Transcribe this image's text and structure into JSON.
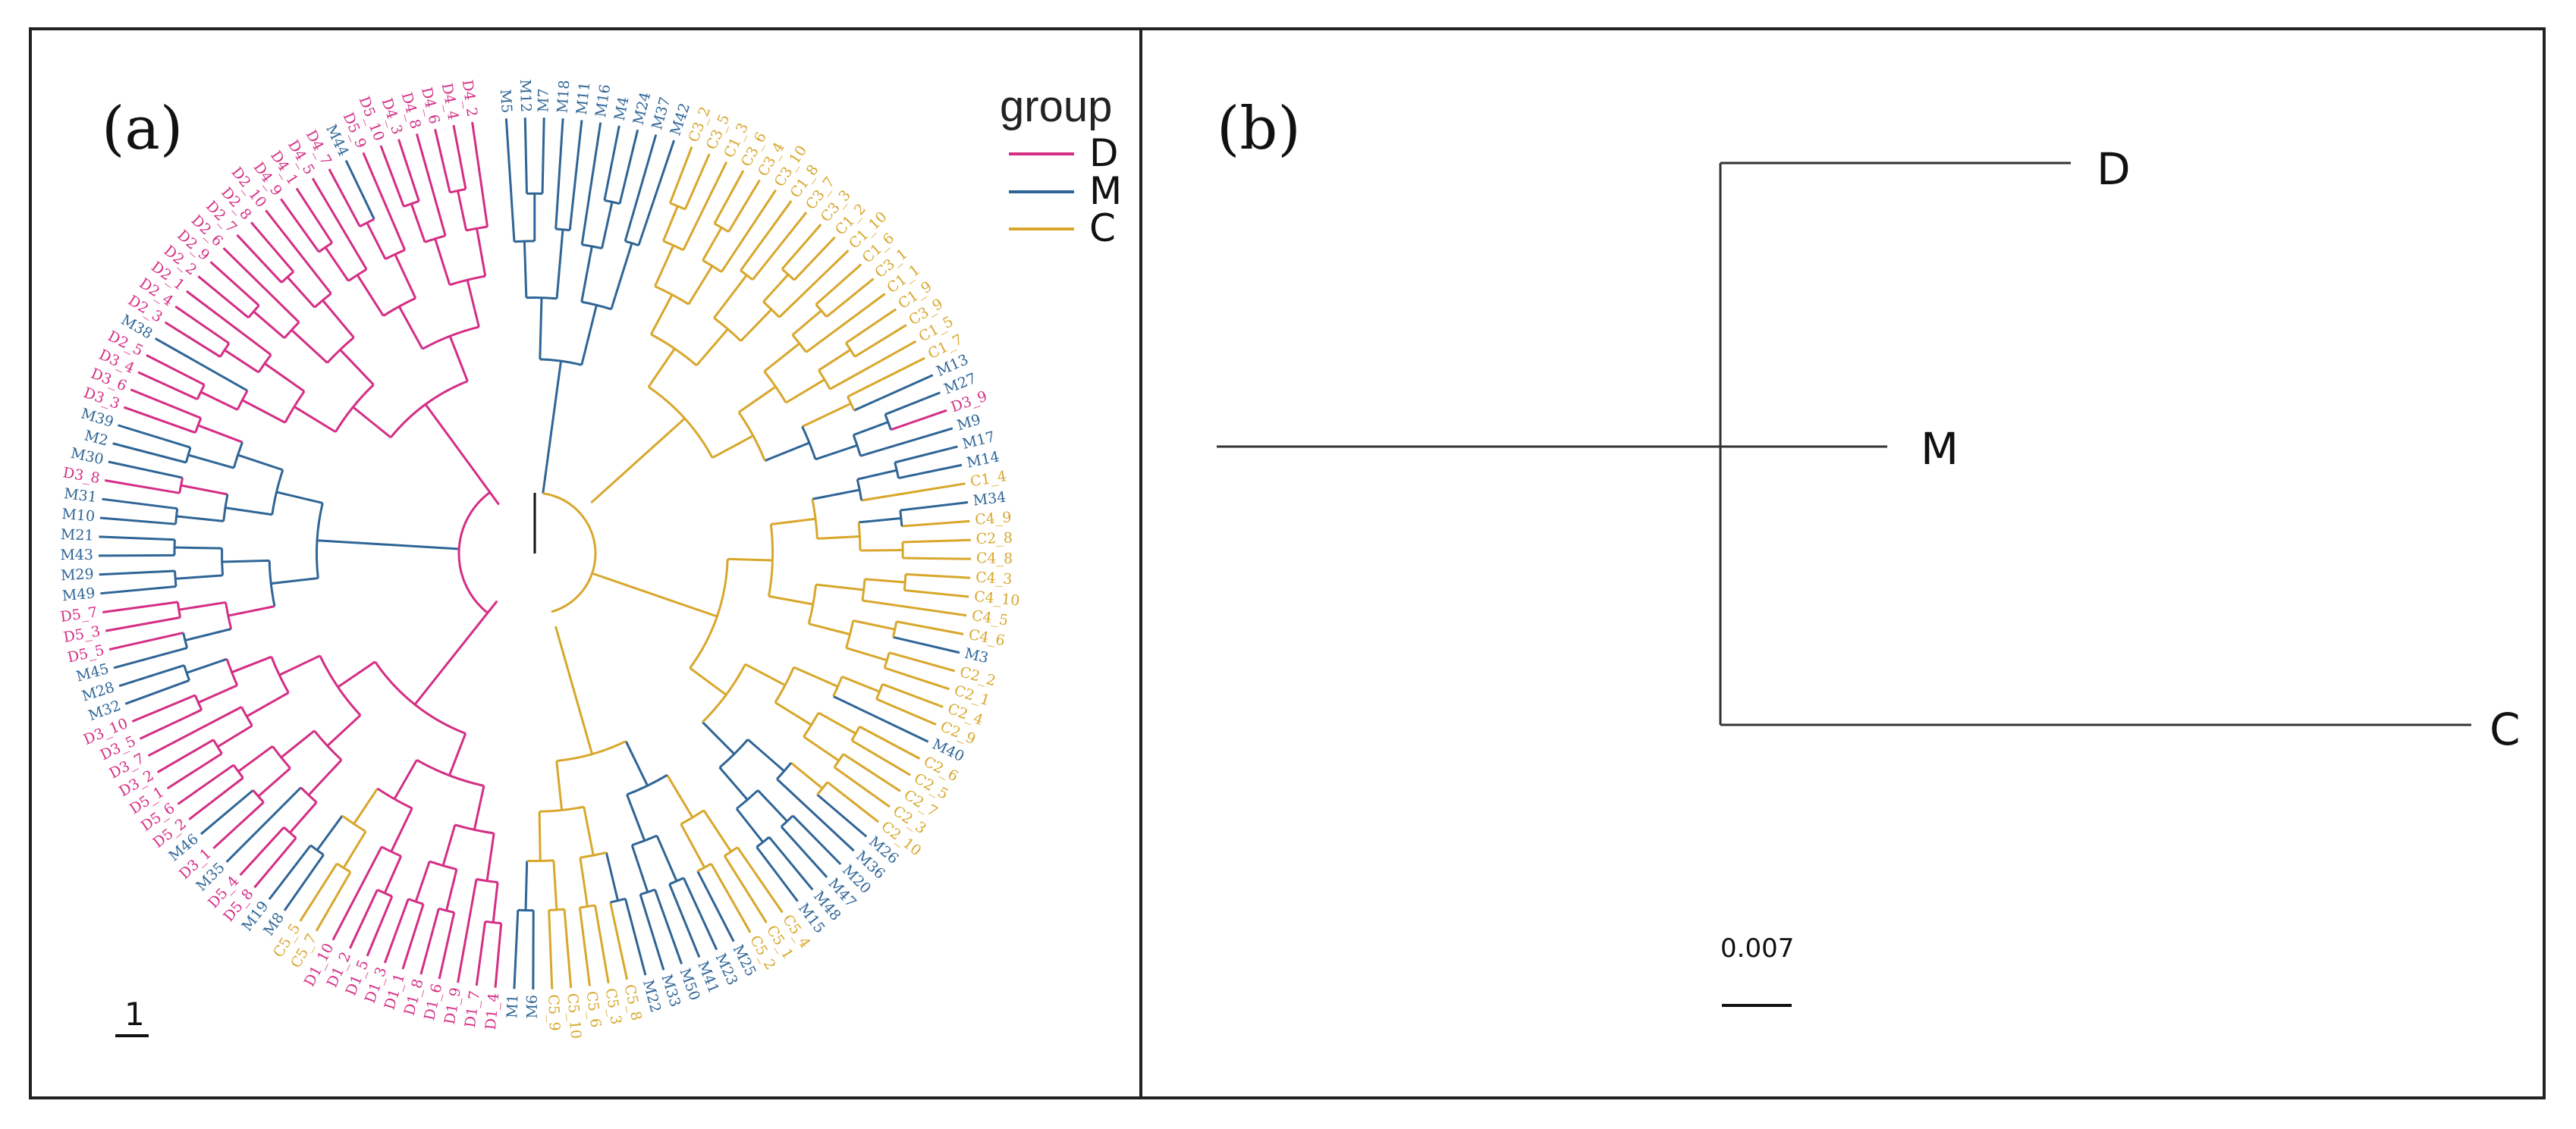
{
  "panel_a": {
    "label": "(a)",
    "legend": {
      "title": "group",
      "entries": [
        {
          "name": "D",
          "color": "#d42e85"
        },
        {
          "name": "M",
          "color": "#2f6596"
        },
        {
          "name": "C",
          "color": "#d8a72c"
        }
      ]
    },
    "scale_label": "1",
    "leaves": [
      {
        "label": "M5",
        "group": "M"
      },
      {
        "label": "M12",
        "group": "M"
      },
      {
        "label": "M7",
        "group": "M"
      },
      {
        "label": "M18",
        "group": "M"
      },
      {
        "label": "M11",
        "group": "M"
      },
      {
        "label": "M16",
        "group": "M"
      },
      {
        "label": "M4",
        "group": "M"
      },
      {
        "label": "M24",
        "group": "M"
      },
      {
        "label": "M37",
        "group": "M"
      },
      {
        "label": "M42",
        "group": "M"
      },
      {
        "label": "C3_2",
        "group": "C"
      },
      {
        "label": "C3_5",
        "group": "C"
      },
      {
        "label": "C1_3",
        "group": "C"
      },
      {
        "label": "C3_6",
        "group": "C"
      },
      {
        "label": "C3_4",
        "group": "C"
      },
      {
        "label": "C3_10",
        "group": "C"
      },
      {
        "label": "C1_8",
        "group": "C"
      },
      {
        "label": "C3_7",
        "group": "C"
      },
      {
        "label": "C3_3",
        "group": "C"
      },
      {
        "label": "C1_2",
        "group": "C"
      },
      {
        "label": "C1_10",
        "group": "C"
      },
      {
        "label": "C1_6",
        "group": "C"
      },
      {
        "label": "C3_1",
        "group": "C"
      },
      {
        "label": "C1_1",
        "group": "C"
      },
      {
        "label": "C1_9",
        "group": "C"
      },
      {
        "label": "C3_9",
        "group": "C"
      },
      {
        "label": "C1_5",
        "group": "C"
      },
      {
        "label": "C1_7",
        "group": "C"
      },
      {
        "label": "M13",
        "group": "M"
      },
      {
        "label": "M27",
        "group": "M"
      },
      {
        "label": "D3_9",
        "group": "D"
      },
      {
        "label": "M9",
        "group": "M"
      },
      {
        "label": "M17",
        "group": "M"
      },
      {
        "label": "M14",
        "group": "M"
      },
      {
        "label": "C1_4",
        "group": "C"
      },
      {
        "label": "M34",
        "group": "M"
      },
      {
        "label": "C4_9",
        "group": "C"
      },
      {
        "label": "C2_8",
        "group": "C"
      },
      {
        "label": "C4_8",
        "group": "C"
      },
      {
        "label": "C4_3",
        "group": "C"
      },
      {
        "label": "C4_10",
        "group": "C"
      },
      {
        "label": "C4_5",
        "group": "C"
      },
      {
        "label": "C4_6",
        "group": "C"
      },
      {
        "label": "M3",
        "group": "M"
      },
      {
        "label": "C2_2",
        "group": "C"
      },
      {
        "label": "C2_1",
        "group": "C"
      },
      {
        "label": "C2_4",
        "group": "C"
      },
      {
        "label": "C2_9",
        "group": "C"
      },
      {
        "label": "M40",
        "group": "M"
      },
      {
        "label": "C2_6",
        "group": "C"
      },
      {
        "label": "C2_5",
        "group": "C"
      },
      {
        "label": "C2_7",
        "group": "C"
      },
      {
        "label": "C2_3",
        "group": "C"
      },
      {
        "label": "C2_10",
        "group": "C"
      },
      {
        "label": "M26",
        "group": "M"
      },
      {
        "label": "M36",
        "group": "M"
      },
      {
        "label": "M20",
        "group": "M"
      },
      {
        "label": "M47",
        "group": "M"
      },
      {
        "label": "M48",
        "group": "M"
      },
      {
        "label": "M15",
        "group": "M"
      },
      {
        "label": "C5_4",
        "group": "C"
      },
      {
        "label": "C5_1",
        "group": "C"
      },
      {
        "label": "C5_2",
        "group": "C"
      },
      {
        "label": "M25",
        "group": "M"
      },
      {
        "label": "M23",
        "group": "M"
      },
      {
        "label": "M41",
        "group": "M"
      },
      {
        "label": "M50",
        "group": "M"
      },
      {
        "label": "M33",
        "group": "M"
      },
      {
        "label": "M22",
        "group": "M"
      },
      {
        "label": "C5_8",
        "group": "C"
      },
      {
        "label": "C5_3",
        "group": "C"
      },
      {
        "label": "C5_6",
        "group": "C"
      },
      {
        "label": "C5_10",
        "group": "C"
      },
      {
        "label": "C5_9",
        "group": "C"
      },
      {
        "label": "M6",
        "group": "M"
      },
      {
        "label": "M1",
        "group": "M"
      },
      {
        "label": "D1_4",
        "group": "D"
      },
      {
        "label": "D1_7",
        "group": "D"
      },
      {
        "label": "D1_9",
        "group": "D"
      },
      {
        "label": "D1_6",
        "group": "D"
      },
      {
        "label": "D1_8",
        "group": "D"
      },
      {
        "label": "D1_1",
        "group": "D"
      },
      {
        "label": "D1_3",
        "group": "D"
      },
      {
        "label": "D1_5",
        "group": "D"
      },
      {
        "label": "D1_2",
        "group": "D"
      },
      {
        "label": "D1_10",
        "group": "D"
      },
      {
        "label": "C5_7",
        "group": "C"
      },
      {
        "label": "C5_5",
        "group": "C"
      },
      {
        "label": "M8",
        "group": "M"
      },
      {
        "label": "M19",
        "group": "M"
      },
      {
        "label": "D5_8",
        "group": "D"
      },
      {
        "label": "D5_4",
        "group": "D"
      },
      {
        "label": "M35",
        "group": "M"
      },
      {
        "label": "D3_1",
        "group": "D"
      },
      {
        "label": "M46",
        "group": "M"
      },
      {
        "label": "D5_2",
        "group": "D"
      },
      {
        "label": "D5_6",
        "group": "D"
      },
      {
        "label": "D5_1",
        "group": "D"
      },
      {
        "label": "D3_2",
        "group": "D"
      },
      {
        "label": "D3_7",
        "group": "D"
      },
      {
        "label": "D3_5",
        "group": "D"
      },
      {
        "label": "D3_10",
        "group": "D"
      },
      {
        "label": "M32",
        "group": "M"
      },
      {
        "label": "M28",
        "group": "M"
      },
      {
        "label": "M45",
        "group": "M"
      },
      {
        "label": "D5_5",
        "group": "D"
      },
      {
        "label": "D5_3",
        "group": "D"
      },
      {
        "label": "D5_7",
        "group": "D"
      },
      {
        "label": "M49",
        "group": "M"
      },
      {
        "label": "M29",
        "group": "M"
      },
      {
        "label": "M43",
        "group": "M"
      },
      {
        "label": "M21",
        "group": "M"
      },
      {
        "label": "M10",
        "group": "M"
      },
      {
        "label": "M31",
        "group": "M"
      },
      {
        "label": "D3_8",
        "group": "D"
      },
      {
        "label": "M30",
        "group": "M"
      },
      {
        "label": "M2",
        "group": "M"
      },
      {
        "label": "M39",
        "group": "M"
      },
      {
        "label": "D3_3",
        "group": "D"
      },
      {
        "label": "D3_6",
        "group": "D"
      },
      {
        "label": "D3_4",
        "group": "D"
      },
      {
        "label": "D2_5",
        "group": "D"
      },
      {
        "label": "M38",
        "group": "M"
      },
      {
        "label": "D2_3",
        "group": "D"
      },
      {
        "label": "D2_4",
        "group": "D"
      },
      {
        "label": "D2_1",
        "group": "D"
      },
      {
        "label": "D2_2",
        "group": "D"
      },
      {
        "label": "D2_9",
        "group": "D"
      },
      {
        "label": "D2_6",
        "group": "D"
      },
      {
        "label": "D2_7",
        "group": "D"
      },
      {
        "label": "D2_8",
        "group": "D"
      },
      {
        "label": "D2_10",
        "group": "D"
      },
      {
        "label": "D4_9",
        "group": "D"
      },
      {
        "label": "D4_1",
        "group": "D"
      },
      {
        "label": "D4_5",
        "group": "D"
      },
      {
        "label": "D4_7",
        "group": "D"
      },
      {
        "label": "M44",
        "group": "M"
      },
      {
        "label": "D5_9",
        "group": "D"
      },
      {
        "label": "D5_10",
        "group": "D"
      },
      {
        "label": "D4_3",
        "group": "D"
      },
      {
        "label": "D4_8",
        "group": "D"
      },
      {
        "label": "D4_6",
        "group": "D"
      },
      {
        "label": "D4_4",
        "group": "D"
      },
      {
        "label": "D4_2",
        "group": "D"
      }
    ]
  },
  "panel_b": {
    "label": "(b)",
    "leaves": [
      "D",
      "M",
      "C"
    ],
    "scale_label": "0.007",
    "line_color": "#333333"
  },
  "frame_color": "#222222"
}
